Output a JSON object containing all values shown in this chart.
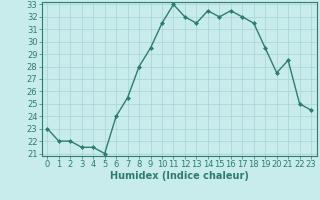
{
  "x": [
    0,
    1,
    2,
    3,
    4,
    5,
    6,
    7,
    8,
    9,
    10,
    11,
    12,
    13,
    14,
    15,
    16,
    17,
    18,
    19,
    20,
    21,
    22,
    23
  ],
  "y": [
    23,
    22,
    22,
    21.5,
    21.5,
    21,
    24,
    25.5,
    28,
    29.5,
    31.5,
    33,
    32,
    31.5,
    32.5,
    32,
    32.5,
    32,
    31.5,
    29.5,
    27.5,
    28.5,
    25,
    24.5
  ],
  "xlabel": "Humidex (Indice chaleur)",
  "ylim": [
    21,
    33
  ],
  "xlim": [
    -0.5,
    23.5
  ],
  "yticks": [
    21,
    22,
    23,
    24,
    25,
    26,
    27,
    28,
    29,
    30,
    31,
    32,
    33
  ],
  "xticks": [
    0,
    1,
    2,
    3,
    4,
    5,
    6,
    7,
    8,
    9,
    10,
    11,
    12,
    13,
    14,
    15,
    16,
    17,
    18,
    19,
    20,
    21,
    22,
    23
  ],
  "line_color": "#2d7d6e",
  "marker": "D",
  "marker_size": 2.0,
  "bg_color": "#c8ecec",
  "grid_color": "#a8d4d4",
  "axis_label_color": "#2d7d6e",
  "tick_label_color": "#2d7d6e",
  "xlabel_fontsize": 7,
  "tick_fontsize": 6,
  "line_width": 1.0
}
